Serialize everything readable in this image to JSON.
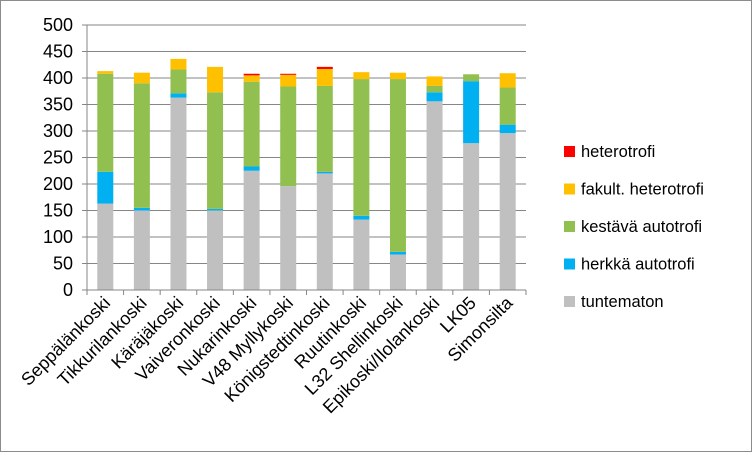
{
  "chart_data": {
    "type": "bar",
    "stacked": true,
    "categories": [
      "Seppälänkoski",
      "Tikkurilankoski",
      "Käräjäkoski",
      "Vaiveronkoski",
      "Nukarinkoski",
      "V48 Myllykoski",
      "Königstedtinkoski",
      "Ruutinkoski",
      "L32 Shellinkoski",
      "Epikoski/Ilolankoski",
      "LK05",
      "Simonsilta"
    ],
    "series": [
      {
        "name": "tuntematon",
        "color": "#c0c0c0",
        "values": [
          163,
          150,
          363,
          150,
          225,
          196,
          220,
          133,
          67,
          356,
          277,
          296
        ]
      },
      {
        "name": "herkkä autotrofi",
        "color": "#00b0f0",
        "values": [
          60,
          5,
          8,
          3,
          8,
          0,
          3,
          7,
          5,
          17,
          117,
          16
        ]
      },
      {
        "name": "kestävä autotrofi",
        "color": "#92c050",
        "values": [
          185,
          235,
          45,
          220,
          160,
          188,
          162,
          258,
          326,
          12,
          13,
          70
        ]
      },
      {
        "name": "fakult. heterotrofi",
        "color": "#ffc000",
        "values": [
          5,
          20,
          20,
          48,
          12,
          22,
          32,
          13,
          12,
          18,
          0,
          27
        ]
      },
      {
        "name": "heterotrofi",
        "color": "#ff0000",
        "values": [
          0,
          0,
          0,
          0,
          3,
          2,
          4,
          0,
          0,
          0,
          0,
          0
        ]
      }
    ],
    "ylim": [
      0,
      500
    ],
    "yticks": [
      "0",
      "50",
      "100",
      "150",
      "200",
      "250",
      "300",
      "350",
      "400",
      "450",
      "500"
    ],
    "grid": true,
    "legend_position": "right"
  }
}
